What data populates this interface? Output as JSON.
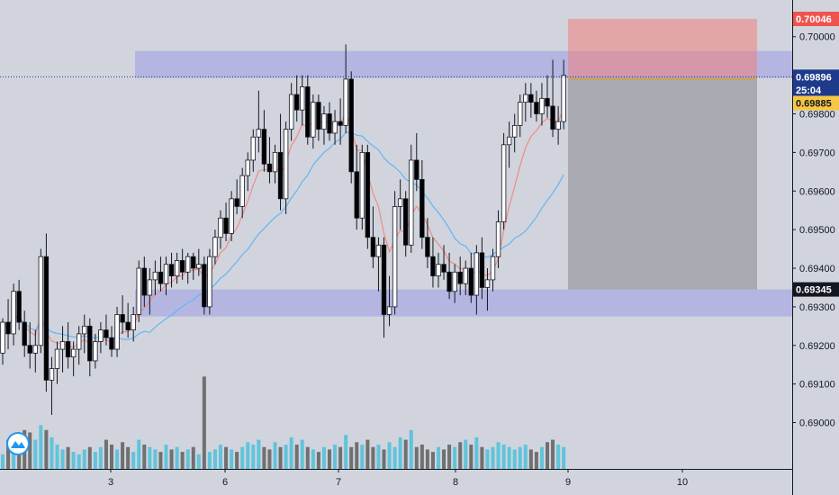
{
  "chart_data": {
    "type": "candlestick",
    "title": "",
    "xlabel": "",
    "ylabel": "",
    "x_ticks": [
      "3",
      "6",
      "7",
      "8",
      "9",
      "10"
    ],
    "y_ticks": [
      "0.70000",
      "0.69900",
      "0.69800",
      "0.69700",
      "0.69600",
      "0.69500",
      "0.69400",
      "0.69300",
      "0.69200",
      "0.69100",
      "0.69000"
    ],
    "ylim": [
      0.6888,
      0.70095
    ],
    "grid": false,
    "legend": "none",
    "price_badges": [
      {
        "label": "0.70046",
        "value": 0.70046,
        "color": "#ef5350",
        "text_color": "#ffffff"
      },
      {
        "label": "0.69896",
        "value": 0.69896,
        "color": "#1e3a8a",
        "text_color": "#ffffff"
      },
      {
        "label": "25:04",
        "value": 0.69862,
        "color": "#1e3a8a",
        "text_color": "#ffffff"
      },
      {
        "label": "0.69885",
        "value": 0.69828,
        "color": "#f7c744",
        "text_color": "#131722"
      },
      {
        "label": "0.69345",
        "value": 0.69345,
        "color": "#131722",
        "text_color": "#ffffff"
      }
    ],
    "resistance_zone": [
      0.69893,
      0.69963
    ],
    "support_zone": [
      0.69275,
      0.69345
    ],
    "short_position": {
      "entry": 0.69896,
      "stop": 0.70046,
      "target": 0.69345
    },
    "current_price": 0.69896,
    "ohlc": [
      [
        0.6918,
        0.6927,
        0.6915,
        0.6926
      ],
      [
        0.6926,
        0.6932,
        0.6919,
        0.6923
      ],
      [
        0.6923,
        0.6936,
        0.692,
        0.6934
      ],
      [
        0.6934,
        0.6937,
        0.6924,
        0.6926
      ],
      [
        0.6926,
        0.6929,
        0.6917,
        0.692
      ],
      [
        0.692,
        0.6926,
        0.6914,
        0.6918
      ],
      [
        0.6918,
        0.6924,
        0.6913,
        0.692
      ],
      [
        0.692,
        0.6945,
        0.6918,
        0.6943
      ],
      [
        0.6943,
        0.6949,
        0.6908,
        0.6911
      ],
      [
        0.6911,
        0.6917,
        0.6902,
        0.6914
      ],
      [
        0.6914,
        0.6921,
        0.691,
        0.6919
      ],
      [
        0.6919,
        0.6925,
        0.6913,
        0.6921
      ],
      [
        0.6921,
        0.6926,
        0.6914,
        0.6917
      ],
      [
        0.6917,
        0.6921,
        0.6912,
        0.6919
      ],
      [
        0.6919,
        0.6925,
        0.6915,
        0.6923
      ],
      [
        0.6923,
        0.6928,
        0.6918,
        0.6925
      ],
      [
        0.6925,
        0.6927,
        0.6912,
        0.6916
      ],
      [
        0.6916,
        0.6923,
        0.6914,
        0.6921
      ],
      [
        0.6921,
        0.6926,
        0.6918,
        0.6924
      ],
      [
        0.6924,
        0.6928,
        0.692,
        0.6922
      ],
      [
        0.6922,
        0.6925,
        0.6917,
        0.6919
      ],
      [
        0.6919,
        0.693,
        0.6917,
        0.6928
      ],
      [
        0.6928,
        0.6933,
        0.6923,
        0.6926
      ],
      [
        0.6926,
        0.6931,
        0.6922,
        0.6924
      ],
      [
        0.6924,
        0.693,
        0.6921,
        0.6928
      ],
      [
        0.6928,
        0.6942,
        0.6926,
        0.694
      ],
      [
        0.694,
        0.6943,
        0.693,
        0.6933
      ],
      [
        0.6933,
        0.694,
        0.6928,
        0.6937
      ],
      [
        0.6937,
        0.6942,
        0.6933,
        0.6939
      ],
      [
        0.6939,
        0.6943,
        0.6934,
        0.6936
      ],
      [
        0.6936,
        0.6943,
        0.6933,
        0.6941
      ],
      [
        0.6941,
        0.6944,
        0.6935,
        0.6938
      ],
      [
        0.6938,
        0.6944,
        0.6936,
        0.6942
      ],
      [
        0.6942,
        0.6945,
        0.6937,
        0.6939
      ],
      [
        0.6939,
        0.6944,
        0.6936,
        0.6943
      ],
      [
        0.6943,
        0.6944,
        0.6937,
        0.694
      ],
      [
        0.694,
        0.6945,
        0.6938,
        0.6941
      ],
      [
        0.6941,
        0.6943,
        0.6928,
        0.693
      ],
      [
        0.693,
        0.6945,
        0.6928,
        0.6943
      ],
      [
        0.6943,
        0.695,
        0.6941,
        0.6948
      ],
      [
        0.6948,
        0.6955,
        0.6945,
        0.6953
      ],
      [
        0.6953,
        0.6957,
        0.6947,
        0.6949
      ],
      [
        0.6949,
        0.696,
        0.6947,
        0.6958
      ],
      [
        0.6958,
        0.6963,
        0.6954,
        0.6956
      ],
      [
        0.6956,
        0.6966,
        0.6953,
        0.6964
      ],
      [
        0.6964,
        0.697,
        0.696,
        0.6968
      ],
      [
        0.6968,
        0.6976,
        0.6965,
        0.6974
      ],
      [
        0.6974,
        0.6986,
        0.697,
        0.6976
      ],
      [
        0.6976,
        0.6981,
        0.6965,
        0.6967
      ],
      [
        0.6967,
        0.6974,
        0.6962,
        0.6965
      ],
      [
        0.6965,
        0.6972,
        0.6962,
        0.697
      ],
      [
        0.697,
        0.698,
        0.6955,
        0.6958
      ],
      [
        0.6958,
        0.6978,
        0.6954,
        0.6976
      ],
      [
        0.6976,
        0.6988,
        0.6973,
        0.6985
      ],
      [
        0.6985,
        0.699,
        0.6978,
        0.6981
      ],
      [
        0.6981,
        0.699,
        0.6977,
        0.6987
      ],
      [
        0.6987,
        0.699,
        0.6972,
        0.6974
      ],
      [
        0.6974,
        0.6985,
        0.6971,
        0.6983
      ],
      [
        0.6983,
        0.6985,
        0.6973,
        0.6976
      ],
      [
        0.6976,
        0.6982,
        0.6972,
        0.698
      ],
      [
        0.698,
        0.6983,
        0.6973,
        0.6975
      ],
      [
        0.6975,
        0.6981,
        0.6972,
        0.6978
      ],
      [
        0.6978,
        0.6984,
        0.6972,
        0.6977
      ],
      [
        0.6977,
        0.6998,
        0.6975,
        0.6989
      ],
      [
        0.6989,
        0.6991,
        0.6962,
        0.6965
      ],
      [
        0.6965,
        0.6972,
        0.695,
        0.6953
      ],
      [
        0.6953,
        0.6972,
        0.695,
        0.697
      ],
      [
        0.697,
        0.6972,
        0.6945,
        0.6948
      ],
      [
        0.6948,
        0.6956,
        0.694,
        0.6943
      ],
      [
        0.6943,
        0.6948,
        0.6934,
        0.6946
      ],
      [
        0.6946,
        0.6948,
        0.6922,
        0.6928
      ],
      [
        0.6928,
        0.6938,
        0.6925,
        0.693
      ],
      [
        0.693,
        0.696,
        0.6928,
        0.6956
      ],
      [
        0.6956,
        0.6963,
        0.695,
        0.6958
      ],
      [
        0.6958,
        0.696,
        0.6943,
        0.6946
      ],
      [
        0.6946,
        0.6972,
        0.6944,
        0.6968
      ],
      [
        0.6968,
        0.6975,
        0.696,
        0.6963
      ],
      [
        0.6963,
        0.6968,
        0.6945,
        0.6948
      ],
      [
        0.6948,
        0.6953,
        0.694,
        0.6943
      ],
      [
        0.6943,
        0.6948,
        0.6935,
        0.6938
      ],
      [
        0.6938,
        0.6944,
        0.6935,
        0.6941
      ],
      [
        0.6941,
        0.6946,
        0.6937,
        0.6939
      ],
      [
        0.6939,
        0.6944,
        0.6932,
        0.6934
      ],
      [
        0.6934,
        0.6941,
        0.6931,
        0.6939
      ],
      [
        0.6939,
        0.6943,
        0.6933,
        0.6936
      ],
      [
        0.6936,
        0.6942,
        0.6933,
        0.694
      ],
      [
        0.694,
        0.6944,
        0.6931,
        0.6933
      ],
      [
        0.6933,
        0.6946,
        0.6928,
        0.6944
      ],
      [
        0.6944,
        0.6948,
        0.6932,
        0.6935
      ],
      [
        0.6935,
        0.694,
        0.6929,
        0.6937
      ],
      [
        0.6937,
        0.6945,
        0.6934,
        0.6943
      ],
      [
        0.6943,
        0.6955,
        0.694,
        0.6952
      ],
      [
        0.6952,
        0.6975,
        0.695,
        0.6972
      ],
      [
        0.6972,
        0.6978,
        0.6966,
        0.6974
      ],
      [
        0.6974,
        0.698,
        0.697,
        0.6977
      ],
      [
        0.6977,
        0.6985,
        0.6974,
        0.6983
      ],
      [
        0.6983,
        0.6988,
        0.6978,
        0.6985
      ],
      [
        0.6985,
        0.6988,
        0.6979,
        0.6983
      ],
      [
        0.6983,
        0.6986,
        0.6978,
        0.698
      ],
      [
        0.698,
        0.6988,
        0.6977,
        0.6984
      ],
      [
        0.6984,
        0.699,
        0.6979,
        0.6982
      ],
      [
        0.6982,
        0.6994,
        0.6974,
        0.6976
      ],
      [
        0.6976,
        0.6982,
        0.6972,
        0.6978
      ],
      [
        0.6978,
        0.6994,
        0.6976,
        0.699
      ]
    ],
    "volume": [
      6,
      12,
      9,
      14,
      16,
      15,
      12,
      18,
      16,
      13,
      10,
      8,
      9,
      7,
      6,
      8,
      9,
      7,
      9,
      12,
      10,
      8,
      11,
      9,
      7,
      12,
      10,
      9,
      8,
      7,
      10,
      8,
      9,
      7,
      8,
      9,
      6,
      38,
      7,
      8,
      10,
      9,
      8,
      7,
      9,
      11,
      10,
      12,
      9,
      8,
      11,
      9,
      10,
      13,
      10,
      12,
      9,
      8,
      7,
      9,
      8,
      10,
      9,
      14,
      9,
      11,
      10,
      12,
      9,
      10,
      8,
      11,
      9,
      13,
      12,
      16,
      9,
      10,
      8,
      7,
      9,
      8,
      10,
      9,
      11,
      12,
      10,
      13,
      9,
      8,
      9,
      11,
      10,
      9,
      8,
      9,
      10,
      8,
      7,
      9,
      11,
      12,
      10,
      9
    ]
  }
}
